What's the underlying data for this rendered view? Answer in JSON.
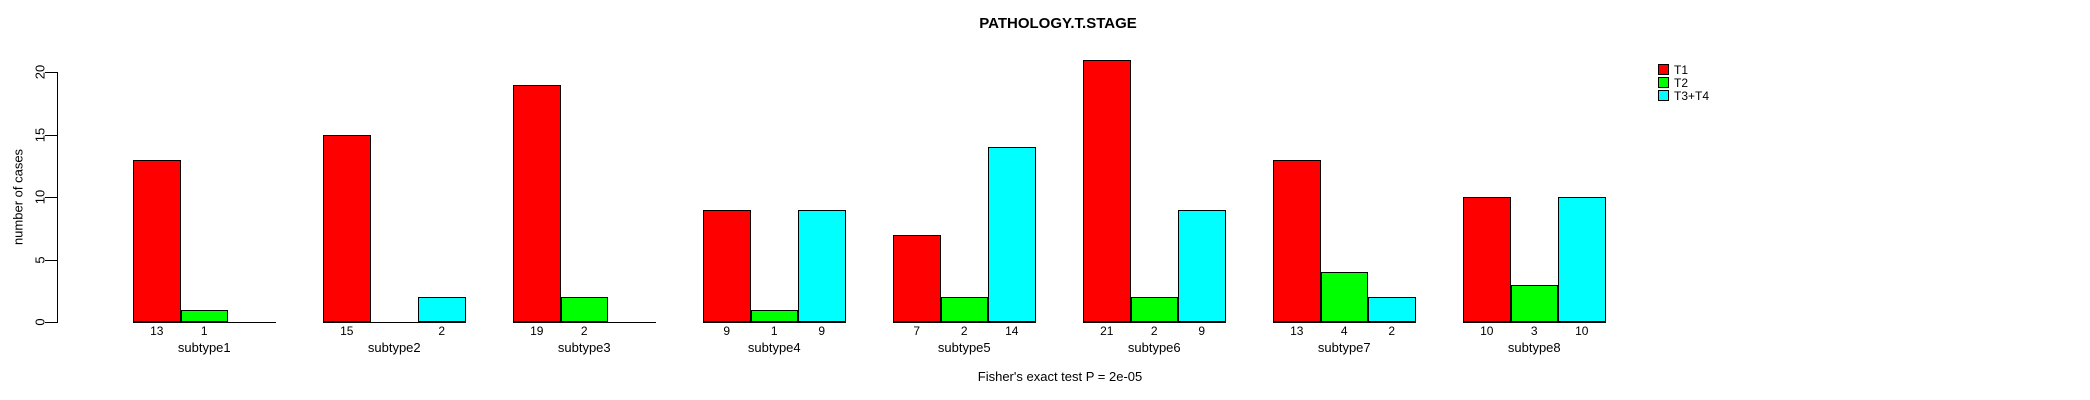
{
  "chart_data": {
    "type": "bar",
    "title": "PATHOLOGY.T.STAGE",
    "xlabel": "",
    "ylabel": "number of cases",
    "caption": "Fisher's exact test P = 2e-05",
    "categories": [
      "subtype1",
      "subtype2",
      "subtype3",
      "subtype4",
      "subtype5",
      "subtype6",
      "subtype7",
      "subtype8"
    ],
    "series": [
      {
        "name": "T1",
        "color": "#ff0000",
        "values": [
          13,
          15,
          19,
          9,
          7,
          21,
          13,
          10
        ]
      },
      {
        "name": "T2",
        "color": "#00ff00",
        "values": [
          1,
          0,
          2,
          1,
          2,
          2,
          4,
          3
        ]
      },
      {
        "name": "T3+T4",
        "color": "#00ffff",
        "values": [
          0,
          2,
          0,
          9,
          14,
          9,
          2,
          10
        ]
      }
    ],
    "yticks": [
      0,
      5,
      10,
      15,
      20
    ],
    "ylim": [
      0,
      20
    ],
    "grid": false,
    "legend_position": "top-right",
    "bar_value_labels": "count shown under each nonzero bar"
  }
}
